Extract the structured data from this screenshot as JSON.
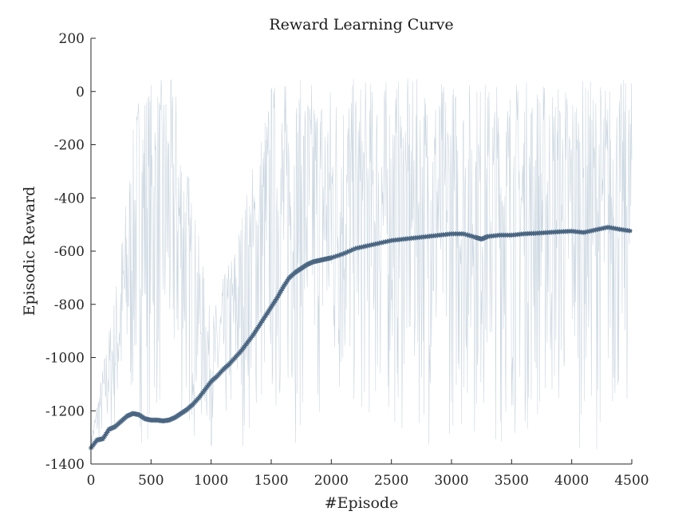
{
  "chart_data": {
    "type": "line",
    "title": "Reward Learning Curve",
    "xlabel": "#Episode",
    "ylabel": "Episodic Reward",
    "xlim": [
      0,
      4500
    ],
    "ylim": [
      -1400,
      200
    ],
    "xticks": [
      0,
      500,
      1000,
      1500,
      2000,
      2500,
      3000,
      3500,
      4000,
      4500
    ],
    "yticks": [
      -1400,
      -1200,
      -1000,
      -800,
      -600,
      -400,
      -200,
      0,
      200
    ],
    "grid": false,
    "legend": "none",
    "colors": {
      "smoothed": "#4a6682",
      "raw": "#c3d0dc",
      "axis": "#262626"
    },
    "series": [
      {
        "role": "raw",
        "style": "thin faint lines, dense oscillation between about -1350 and +50",
        "values_note": "per-episode rewards, too dense to read individually",
        "envelope": {
          "episodes": [
            0,
            200,
            400,
            700,
            1000,
            1200,
            1500,
            2000,
            3000,
            4500
          ],
          "min": [
            -1350,
            -1350,
            -1350,
            -1350,
            -1350,
            -1350,
            -1350,
            -1350,
            -1350,
            -1350
          ],
          "max": [
            -1300,
            -750,
            50,
            50,
            -850,
            -550,
            50,
            50,
            50,
            50
          ]
        }
      },
      {
        "role": "smoothed",
        "style": "thick line with star markers",
        "x": [
          0,
          50,
          100,
          150,
          200,
          250,
          300,
          350,
          400,
          450,
          500,
          550,
          600,
          650,
          700,
          750,
          800,
          850,
          900,
          950,
          1000,
          1050,
          1100,
          1150,
          1200,
          1250,
          1300,
          1350,
          1400,
          1450,
          1500,
          1550,
          1600,
          1650,
          1700,
          1750,
          1800,
          1850,
          1900,
          1950,
          2000,
          2100,
          2200,
          2300,
          2400,
          2500,
          2600,
          2700,
          2800,
          2900,
          3000,
          3100,
          3200,
          3250,
          3300,
          3400,
          3500,
          3600,
          3700,
          3800,
          3900,
          4000,
          4100,
          4200,
          4300,
          4400,
          4500
        ],
        "y": [
          -1340,
          -1310,
          -1305,
          -1270,
          -1260,
          -1240,
          -1220,
          -1210,
          -1215,
          -1230,
          -1235,
          -1235,
          -1238,
          -1235,
          -1225,
          -1210,
          -1195,
          -1175,
          -1150,
          -1120,
          -1090,
          -1070,
          -1045,
          -1025,
          -1000,
          -975,
          -945,
          -915,
          -880,
          -845,
          -810,
          -775,
          -735,
          -700,
          -680,
          -665,
          -650,
          -640,
          -635,
          -630,
          -625,
          -610,
          -590,
          -580,
          -570,
          -560,
          -555,
          -550,
          -545,
          -540,
          -535,
          -535,
          -548,
          -555,
          -545,
          -540,
          -540,
          -535,
          -533,
          -530,
          -527,
          -525,
          -530,
          -520,
          -510,
          -518,
          -525
        ]
      }
    ]
  }
}
